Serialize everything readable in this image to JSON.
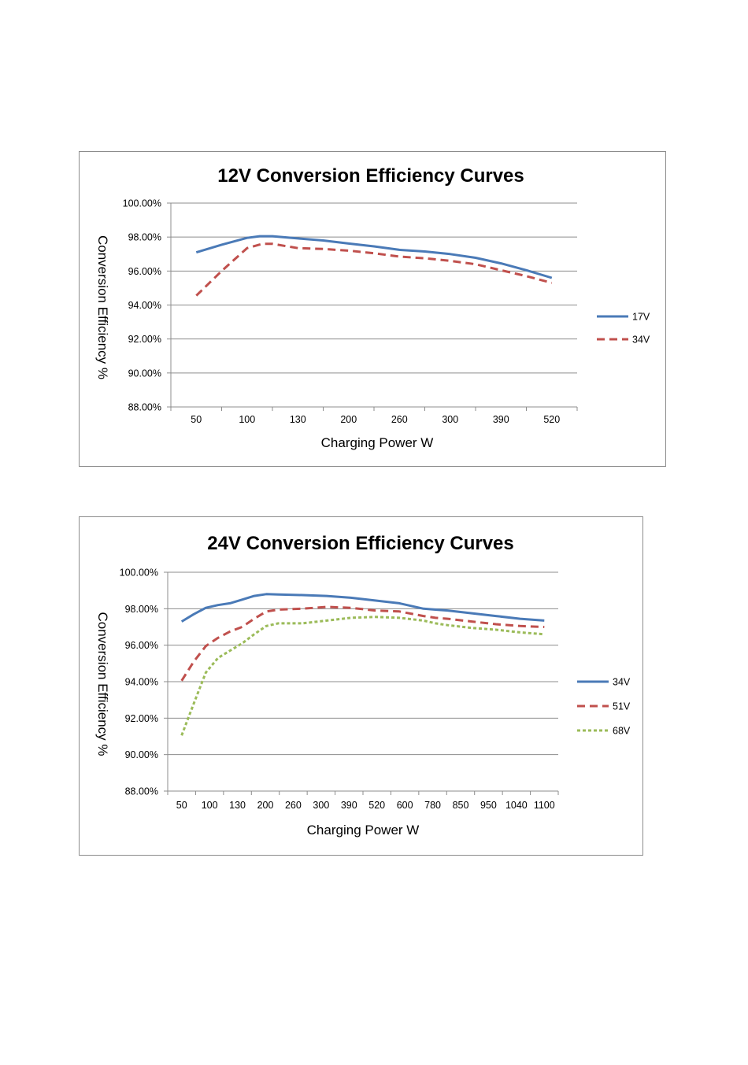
{
  "chart_data": [
    {
      "type": "line",
      "title": "12V Conversion Efficiency Curves",
      "xlabel": "Charging Power W",
      "ylabel": "Conversion Efficiency %",
      "ylim": [
        88,
        100
      ],
      "yticks": [
        "100.00%",
        "98.00%",
        "96.00%",
        "94.00%",
        "92.00%",
        "90.00%",
        "88.00%"
      ],
      "categories": [
        "50",
        "100",
        "130",
        "200",
        "260",
        "300",
        "390",
        "520"
      ],
      "grid": true,
      "legend": "right",
      "series": [
        {
          "name": "17V",
          "color": "#4a7ab7",
          "style": "solid",
          "points": [
            [
              0,
              97.1
            ],
            [
              0.5,
              97.55
            ],
            [
              1,
              97.95
            ],
            [
              1.25,
              98.05
            ],
            [
              1.5,
              98.05
            ],
            [
              2,
              97.92
            ],
            [
              2.5,
              97.8
            ],
            [
              3,
              97.62
            ],
            [
              3.5,
              97.45
            ],
            [
              4,
              97.25
            ],
            [
              4.5,
              97.15
            ],
            [
              5,
              97.0
            ],
            [
              5.5,
              96.78
            ],
            [
              6,
              96.45
            ],
            [
              6.5,
              96.05
            ],
            [
              7,
              95.6
            ]
          ]
        },
        {
          "name": "34V",
          "color": "#c0504d",
          "style": "dashed",
          "points": [
            [
              0,
              94.55
            ],
            [
              0.5,
              96.0
            ],
            [
              1,
              97.35
            ],
            [
              1.3,
              97.6
            ],
            [
              1.5,
              97.6
            ],
            [
              2,
              97.35
            ],
            [
              2.5,
              97.3
            ],
            [
              3,
              97.2
            ],
            [
              3.5,
              97.05
            ],
            [
              4,
              96.85
            ],
            [
              4.5,
              96.75
            ],
            [
              5,
              96.6
            ],
            [
              5.5,
              96.4
            ],
            [
              6,
              96.05
            ],
            [
              6.5,
              95.7
            ],
            [
              7,
              95.3
            ]
          ]
        }
      ]
    },
    {
      "type": "line",
      "title": "24V Conversion Efficiency Curves",
      "xlabel": "Charging Power W",
      "ylabel": "Conversion Efficiency %",
      "ylim": [
        88,
        100
      ],
      "yticks": [
        "100.00%",
        "98.00%",
        "96.00%",
        "94.00%",
        "92.00%",
        "90.00%",
        "88.00%"
      ],
      "categories": [
        "50",
        "100",
        "130",
        "200",
        "260",
        "300",
        "390",
        "520",
        "600",
        "780",
        "850",
        "950",
        "1040",
        "1100"
      ],
      "grid": true,
      "legend": "right",
      "series": [
        {
          "name": "34V",
          "color": "#4a7ab7",
          "style": "solid",
          "points": [
            [
              0,
              97.3
            ],
            [
              0.5,
              97.7
            ],
            [
              1,
              98.05
            ],
            [
              1.5,
              98.2
            ],
            [
              2,
              98.3
            ],
            [
              2.5,
              98.5
            ],
            [
              3,
              98.7
            ],
            [
              3.5,
              98.8
            ],
            [
              4,
              98.78
            ],
            [
              5,
              98.75
            ],
            [
              6,
              98.7
            ],
            [
              7,
              98.6
            ],
            [
              8,
              98.45
            ],
            [
              9,
              98.3
            ],
            [
              10,
              98.0
            ],
            [
              10.5,
              97.95
            ],
            [
              11,
              97.9
            ],
            [
              12,
              97.75
            ],
            [
              13,
              97.6
            ],
            [
              14,
              97.45
            ],
            [
              15,
              97.35
            ]
          ]
        },
        {
          "name": "51V",
          "color": "#c0504d",
          "style": "dashed",
          "points": [
            [
              0,
              94.05
            ],
            [
              0.5,
              95.1
            ],
            [
              1,
              95.95
            ],
            [
              1.5,
              96.4
            ],
            [
              2,
              96.75
            ],
            [
              2.5,
              97.0
            ],
            [
              3,
              97.45
            ],
            [
              3.5,
              97.85
            ],
            [
              4,
              97.95
            ],
            [
              5,
              98.0
            ],
            [
              6,
              98.1
            ],
            [
              7,
              98.05
            ],
            [
              8,
              97.9
            ],
            [
              9,
              97.85
            ],
            [
              10,
              97.6
            ],
            [
              10.5,
              97.5
            ],
            [
              11,
              97.45
            ],
            [
              12,
              97.3
            ],
            [
              13,
              97.15
            ],
            [
              14,
              97.05
            ],
            [
              15,
              97.0
            ]
          ]
        },
        {
          "name": "68V",
          "color": "#9bbb59",
          "style": "dotted",
          "points": [
            [
              0,
              91.05
            ],
            [
              0.5,
              92.8
            ],
            [
              1,
              94.5
            ],
            [
              1.5,
              95.3
            ],
            [
              2,
              95.7
            ],
            [
              2.5,
              96.1
            ],
            [
              3,
              96.6
            ],
            [
              3.5,
              97.05
            ],
            [
              4,
              97.2
            ],
            [
              5,
              97.2
            ],
            [
              6,
              97.35
            ],
            [
              7,
              97.5
            ],
            [
              8,
              97.55
            ],
            [
              9,
              97.5
            ],
            [
              10,
              97.35
            ],
            [
              10.5,
              97.2
            ],
            [
              11,
              97.1
            ],
            [
              12,
              96.95
            ],
            [
              13,
              96.85
            ],
            [
              14,
              96.7
            ],
            [
              15,
              96.6
            ]
          ]
        }
      ]
    }
  ]
}
